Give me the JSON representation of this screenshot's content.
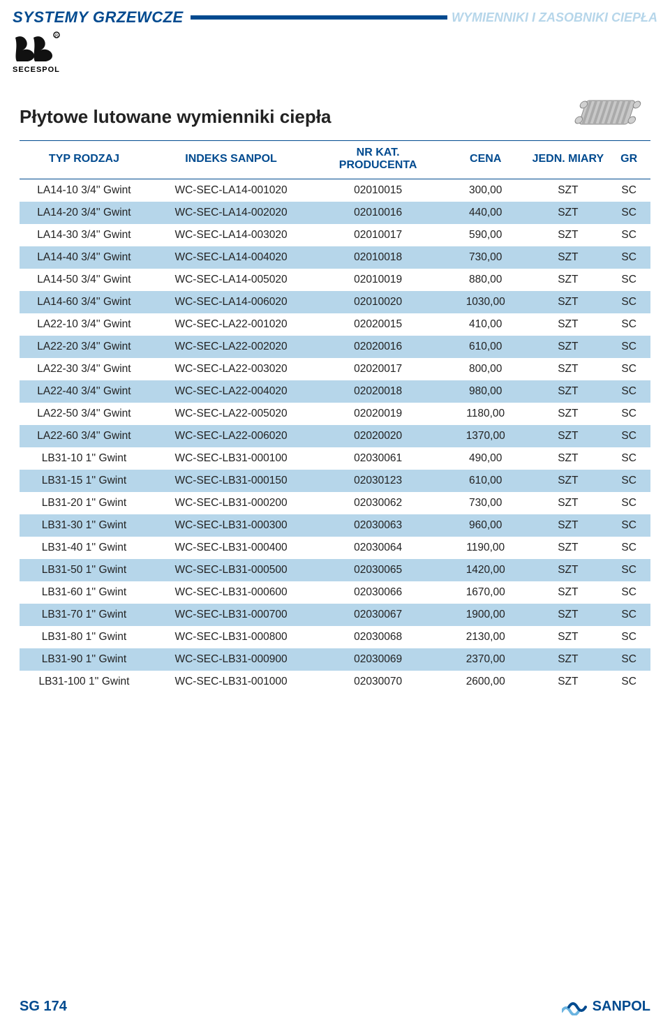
{
  "header": {
    "section_left": "SYSTEMY GRZEWCZE",
    "section_right": "WYMIENNIKI I ZASOBNIKI CIEPŁA",
    "brand_name": "SECESPOL",
    "accent_color": "#004a8f",
    "right_color": "#b6d6ea"
  },
  "subheading": "Płytowe lutowane wymienniki ciepła",
  "table": {
    "alt_row_bg": "#b6d6ea",
    "columns": [
      "TYP RODZAJ",
      "INDEKS SANPOL",
      "NR KAT. PRODUCENTA",
      "CENA",
      "JEDN. MIARY",
      "GR"
    ],
    "rows": [
      [
        "LA14-10 3/4'' Gwint",
        "WC-SEC-LA14-001020",
        "02010015",
        "300,00",
        "SZT",
        "SC"
      ],
      [
        "LA14-20 3/4'' Gwint",
        "WC-SEC-LA14-002020",
        "02010016",
        "440,00",
        "SZT",
        "SC"
      ],
      [
        "LA14-30 3/4'' Gwint",
        "WC-SEC-LA14-003020",
        "02010017",
        "590,00",
        "SZT",
        "SC"
      ],
      [
        "LA14-40 3/4'' Gwint",
        "WC-SEC-LA14-004020",
        "02010018",
        "730,00",
        "SZT",
        "SC"
      ],
      [
        "LA14-50 3/4'' Gwint",
        "WC-SEC-LA14-005020",
        "02010019",
        "880,00",
        "SZT",
        "SC"
      ],
      [
        "LA14-60 3/4'' Gwint",
        "WC-SEC-LA14-006020",
        "02010020",
        "1030,00",
        "SZT",
        "SC"
      ],
      [
        "LA22-10 3/4'' Gwint",
        "WC-SEC-LA22-001020",
        "02020015",
        "410,00",
        "SZT",
        "SC"
      ],
      [
        "LA22-20 3/4'' Gwint",
        "WC-SEC-LA22-002020",
        "02020016",
        "610,00",
        "SZT",
        "SC"
      ],
      [
        "LA22-30 3/4'' Gwint",
        "WC-SEC-LA22-003020",
        "02020017",
        "800,00",
        "SZT",
        "SC"
      ],
      [
        "LA22-40 3/4'' Gwint",
        "WC-SEC-LA22-004020",
        "02020018",
        "980,00",
        "SZT",
        "SC"
      ],
      [
        "LA22-50 3/4'' Gwint",
        "WC-SEC-LA22-005020",
        "02020019",
        "1180,00",
        "SZT",
        "SC"
      ],
      [
        "LA22-60 3/4'' Gwint",
        "WC-SEC-LA22-006020",
        "02020020",
        "1370,00",
        "SZT",
        "SC"
      ],
      [
        "LB31-10 1'' Gwint",
        "WC-SEC-LB31-000100",
        "02030061",
        "490,00",
        "SZT",
        "SC"
      ],
      [
        "LB31-15 1'' Gwint",
        "WC-SEC-LB31-000150",
        "02030123",
        "610,00",
        "SZT",
        "SC"
      ],
      [
        "LB31-20 1'' Gwint",
        "WC-SEC-LB31-000200",
        "02030062",
        "730,00",
        "SZT",
        "SC"
      ],
      [
        "LB31-30 1'' Gwint",
        "WC-SEC-LB31-000300",
        "02030063",
        "960,00",
        "SZT",
        "SC"
      ],
      [
        "LB31-40 1'' Gwint",
        "WC-SEC-LB31-000400",
        "02030064",
        "1190,00",
        "SZT",
        "SC"
      ],
      [
        "LB31-50 1'' Gwint",
        "WC-SEC-LB31-000500",
        "02030065",
        "1420,00",
        "SZT",
        "SC"
      ],
      [
        "LB31-60 1'' Gwint",
        "WC-SEC-LB31-000600",
        "02030066",
        "1670,00",
        "SZT",
        "SC"
      ],
      [
        "LB31-70 1'' Gwint",
        "WC-SEC-LB31-000700",
        "02030067",
        "1900,00",
        "SZT",
        "SC"
      ],
      [
        "LB31-80 1'' Gwint",
        "WC-SEC-LB31-000800",
        "02030068",
        "2130,00",
        "SZT",
        "SC"
      ],
      [
        "LB31-90 1'' Gwint",
        "WC-SEC-LB31-000900",
        "02030069",
        "2370,00",
        "SZT",
        "SC"
      ],
      [
        "LB31-100 1'' Gwint",
        "WC-SEC-LB31-001000",
        "02030070",
        "2600,00",
        "SZT",
        "SC"
      ]
    ]
  },
  "footer": {
    "page_number": "SG 174",
    "brand": "SANPOL"
  }
}
